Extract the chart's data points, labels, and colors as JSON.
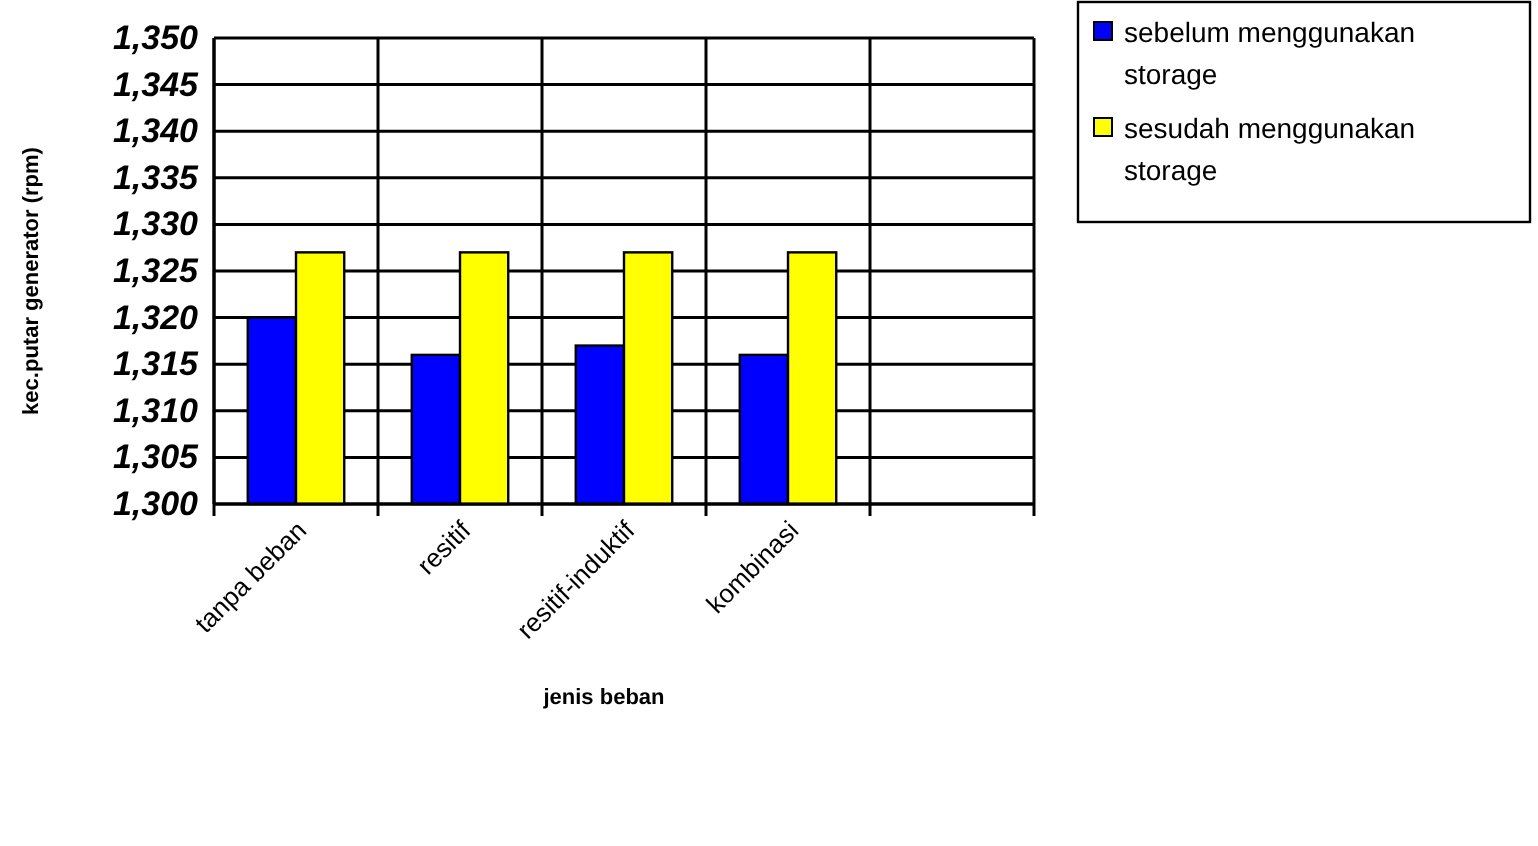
{
  "chart_data": {
    "type": "bar",
    "xlabel": "jenis beban",
    "ylabel": "kec.putar generator (rpm)",
    "categories": [
      "tanpa beban",
      "resitif",
      "resitif-induktif",
      "kombinasi",
      null
    ],
    "series": [
      {
        "name": "sebelum menggunakan storage",
        "color": "#0000ff",
        "values": [
          1320,
          1316,
          1317,
          1316,
          null
        ]
      },
      {
        "name": "sesudah menggunakan storage",
        "color": "#ffff00",
        "values": [
          1327,
          1327,
          1327,
          1327,
          null
        ]
      }
    ],
    "ylim": [
      1300,
      1350
    ],
    "yticks": [
      {
        "value": 1300,
        "label": "1,300"
      },
      {
        "value": 1305,
        "label": "1,305"
      },
      {
        "value": 1310,
        "label": "1,310"
      },
      {
        "value": 1315,
        "label": "1,315"
      },
      {
        "value": 1320,
        "label": "1,320"
      },
      {
        "value": 1325,
        "label": "1,325"
      },
      {
        "value": 1330,
        "label": "1,330"
      },
      {
        "value": 1335,
        "label": "1,335"
      },
      {
        "value": 1340,
        "label": "1,340"
      },
      {
        "value": 1345,
        "label": "1,345"
      },
      {
        "value": 1350,
        "label": "1,350"
      }
    ],
    "grid": true,
    "legend": "top right"
  }
}
